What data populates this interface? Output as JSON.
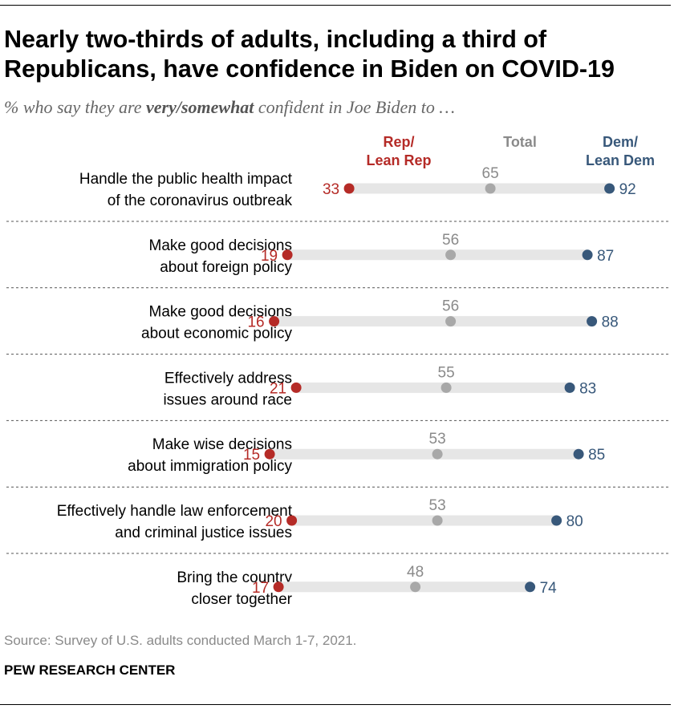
{
  "header": {
    "title": "Nearly two-thirds of adults, including a third of Republicans, have confidence in Biden on COVID-19",
    "subtitle_prefix": "% who say they are ",
    "subtitle_emphasis": "very/somewhat",
    "subtitle_suffix": " confident in Joe Biden to …"
  },
  "chart_data": {
    "type": "dot",
    "legend": [
      {
        "key": "rep",
        "lines": [
          "Rep/",
          "Lean Rep"
        ]
      },
      {
        "key": "total",
        "lines": [
          "Total"
        ]
      },
      {
        "key": "dem",
        "lines": [
          "Dem/",
          "Lean Dem"
        ]
      }
    ],
    "xlim": [
      0,
      100
    ],
    "grid": false,
    "colors": {
      "rep": "#b52b27",
      "total": "#a8a8a8",
      "dem": "#38587a",
      "bar": "#e6e6e6",
      "total_label": "#8a8a8a"
    },
    "items": [
      {
        "lines": [
          "Handle the public health impact",
          "of the coronavirus outbreak"
        ],
        "rep": 33,
        "total": 65,
        "dem": 92
      },
      {
        "lines": [
          "Make good decisions",
          "about foreign policy"
        ],
        "rep": 19,
        "total": 56,
        "dem": 87
      },
      {
        "lines": [
          "Make good decisions",
          "about economic policy"
        ],
        "rep": 16,
        "total": 56,
        "dem": 88
      },
      {
        "lines": [
          "Effectively address",
          "issues around race"
        ],
        "rep": 21,
        "total": 55,
        "dem": 83
      },
      {
        "lines": [
          "Make wise decisions",
          "about immigration policy"
        ],
        "rep": 15,
        "total": 53,
        "dem": 85
      },
      {
        "lines": [
          "Effectively handle law enforcement",
          "and criminal justice issues"
        ],
        "rep": 20,
        "total": 53,
        "dem": 80
      },
      {
        "lines": [
          "Bring the country",
          "closer together"
        ],
        "rep": 17,
        "total": 48,
        "dem": 74
      }
    ]
  },
  "footer": {
    "source": "Source: Survey of U.S. adults conducted March 1-7, 2021.",
    "brand": "PEW RESEARCH CENTER"
  }
}
